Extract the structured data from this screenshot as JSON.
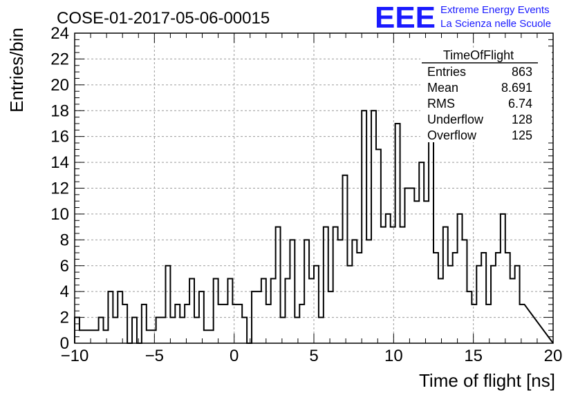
{
  "header": {
    "run_title": "COSE-01-2017-05-06-00015",
    "logo_text": "EEE",
    "logo_line1": "Extreme Energy Events",
    "logo_line2": "La Scienza nelle Scuole",
    "brand_color": "#1a1aff"
  },
  "stats": {
    "title": "TimeOfFlight",
    "rows": [
      {
        "label": "Entries",
        "value": "863"
      },
      {
        "label": "Mean",
        "value": "8.691"
      },
      {
        "label": "RMS",
        "value": "6.74"
      },
      {
        "label": "Underflow",
        "value": "128"
      },
      {
        "label": "Overflow",
        "value": "125"
      }
    ]
  },
  "chart_data": {
    "type": "histogram",
    "xlabel": "Time of flight [ns]",
    "ylabel": "Entries/bin",
    "xlim": [
      -10,
      20
    ],
    "ylim": [
      0,
      24
    ],
    "x_ticks": [
      "−10",
      "−5",
      "0",
      "5",
      "10",
      "15",
      "20"
    ],
    "x_tick_values": [
      -10,
      -5,
      0,
      5,
      10,
      15,
      20
    ],
    "y_ticks": [
      "0",
      "2",
      "4",
      "6",
      "8",
      "10",
      "12",
      "14",
      "16",
      "18",
      "20",
      "22",
      "24"
    ],
    "y_tick_values": [
      0,
      2,
      4,
      6,
      8,
      10,
      12,
      14,
      16,
      18,
      20,
      22,
      24
    ],
    "grid": true,
    "bin_edges_start": -10,
    "bin_width": 0.3,
    "counts": [
      2,
      1,
      1,
      1,
      1,
      2,
      1,
      4,
      2,
      4,
      3,
      0,
      2,
      0,
      3,
      1,
      1,
      2,
      2,
      6,
      2,
      3,
      2,
      3,
      5,
      2,
      4,
      1,
      1,
      5,
      3,
      3,
      5,
      3,
      3,
      2,
      0,
      4,
      4,
      5,
      3,
      5,
      9,
      2,
      5,
      8,
      2,
      3,
      8,
      5,
      6,
      2,
      9,
      4,
      9,
      8,
      13,
      6,
      8,
      7,
      18,
      8,
      18,
      15,
      9,
      10,
      9,
      17,
      9,
      12,
      12,
      11,
      14,
      11,
      17,
      7,
      5,
      9,
      6,
      7,
      10,
      8,
      4,
      3,
      6,
      7,
      3,
      6,
      7,
      10,
      7,
      5,
      6,
      3
    ]
  }
}
